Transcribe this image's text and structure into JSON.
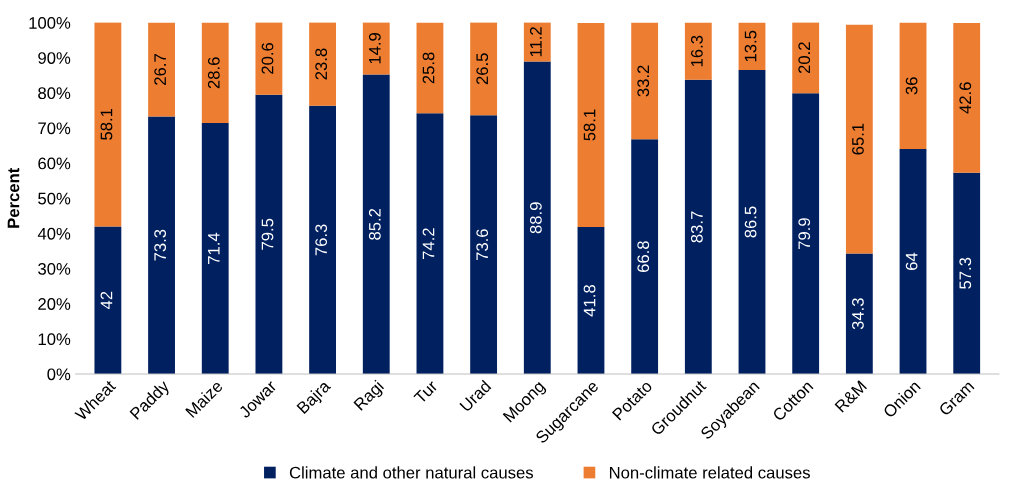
{
  "chart_data": {
    "type": "bar",
    "stacked": true,
    "ylabel": "Percent",
    "categories": [
      "Wheat",
      "Paddy",
      "Maize",
      "Jowar",
      "Bajra",
      "Ragi",
      "Tur",
      "Urad",
      "Moong",
      "Sugarcane",
      "Potato",
      "Groudnut",
      "Soyabean",
      "Cotton",
      "R&M",
      "Onion",
      "Gram"
    ],
    "series": [
      {
        "name": "Climate and other natural causes",
        "color": "#002060",
        "values": [
          42,
          73.3,
          71.4,
          79.5,
          76.3,
          85.2,
          74.2,
          73.6,
          88.9,
          41.8,
          66.8,
          83.7,
          86.5,
          79.9,
          34.3,
          64,
          57.3
        ]
      },
      {
        "name": "Non-climate related causes",
        "color": "#ed7d31",
        "values": [
          58.1,
          26.7,
          28.6,
          20.6,
          23.8,
          14.9,
          25.8,
          26.5,
          11.2,
          58.1,
          33.2,
          16.3,
          13.5,
          20.2,
          65.1,
          36,
          42.6
        ]
      }
    ],
    "ylim": [
      0,
      100
    ],
    "yticks": [
      {
        "value": 0,
        "label": "0%"
      },
      {
        "value": 10,
        "label": "10%"
      },
      {
        "value": 20,
        "label": "20%"
      },
      {
        "value": 30,
        "label": "30%"
      },
      {
        "value": 40,
        "label": "40%"
      },
      {
        "value": 50,
        "label": "50%"
      },
      {
        "value": 60,
        "label": "60%"
      },
      {
        "value": 70,
        "label": "70%"
      },
      {
        "value": 80,
        "label": "80%"
      },
      {
        "value": 90,
        "label": "90%"
      },
      {
        "value": 100,
        "label": "100%"
      }
    ],
    "data_labels": true,
    "legend": "bottom",
    "grid": false
  }
}
